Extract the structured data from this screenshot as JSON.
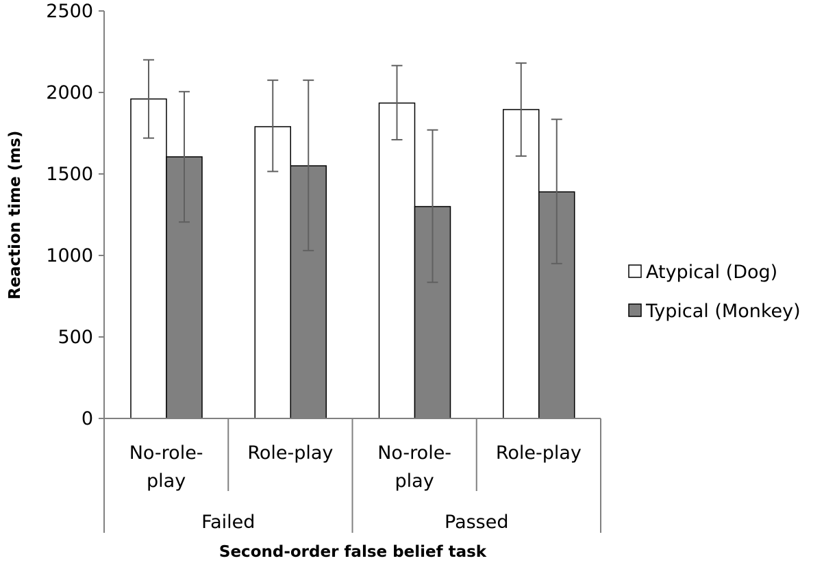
{
  "chart_data": {
    "type": "bar",
    "ylabel": "Reaction time (ms)",
    "xlabel": "Second-order false belief task",
    "ylim": [
      0,
      2500
    ],
    "yticks": [
      0,
      500,
      1000,
      1500,
      2000,
      2500
    ],
    "groups": [
      {
        "label": "Failed",
        "subgroups": [
          [
            "No-role-",
            "play"
          ],
          [
            "Role-play"
          ]
        ]
      },
      {
        "label": "Passed",
        "subgroups": [
          [
            "No-role-",
            "play"
          ],
          [
            "Role-play"
          ]
        ]
      }
    ],
    "categories": [
      "Failed / No-role-play",
      "Failed / Role-play",
      "Passed / No-role-play",
      "Passed / Role-play"
    ],
    "series": [
      {
        "name": "Atypical (Dog)",
        "color": "#ffffff",
        "values": [
          1960,
          1790,
          1935,
          1895
        ],
        "error_low": [
          1720,
          1515,
          1710,
          1610
        ],
        "error_high": [
          2200,
          2075,
          2165,
          2180
        ]
      },
      {
        "name": "Typical (Monkey)",
        "color": "#808080",
        "values": [
          1605,
          1550,
          1300,
          1390
        ],
        "error_low": [
          1205,
          1030,
          835,
          950
        ],
        "error_high": [
          2005,
          2075,
          1770,
          1835
        ]
      }
    ],
    "legend_position": "right",
    "grid": false
  }
}
